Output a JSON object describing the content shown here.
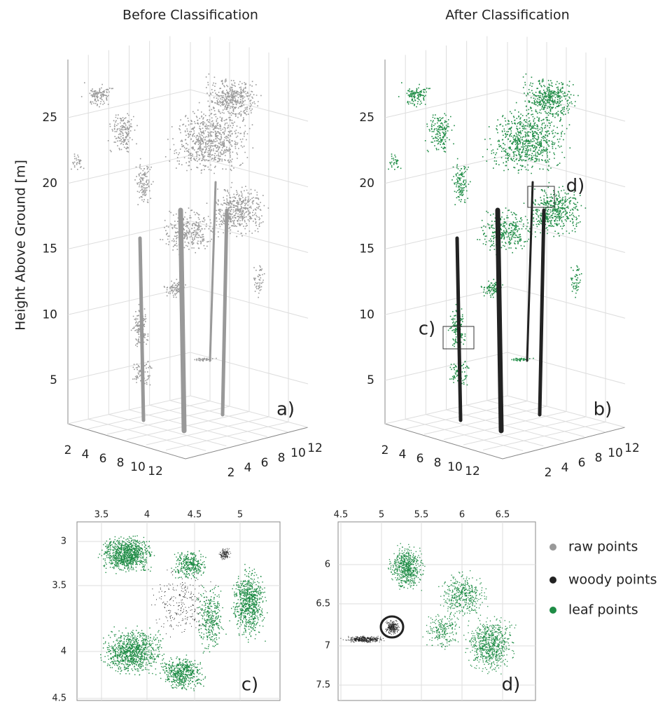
{
  "panels": [
    {
      "title": "Before Classification",
      "z_axis_label": "Height Above Ground [m]",
      "z_ticks": [
        5,
        10,
        15,
        20,
        25
      ],
      "x_ticks": [
        2,
        4,
        6,
        8,
        10,
        12
      ],
      "y_ticks": [
        2,
        4,
        6,
        8,
        10,
        12
      ],
      "label": "a)"
    },
    {
      "title": "After Classification",
      "z_ticks": [
        5,
        10,
        15,
        20,
        25
      ],
      "x_ticks": [
        2,
        4,
        6,
        8,
        10,
        12
      ],
      "y_ticks": [
        2,
        4,
        6,
        8,
        10,
        12
      ],
      "label": "b)",
      "box_labels": [
        "c)",
        "d)"
      ]
    }
  ],
  "insets": [
    {
      "x_ticks": [
        3.5,
        4,
        4.5,
        5
      ],
      "y_ticks": [
        3,
        3.5,
        4,
        4.5
      ],
      "label": "c)"
    },
    {
      "x_ticks": [
        4.5,
        5,
        5.5,
        6,
        6.5
      ],
      "y_ticks": [
        6,
        6.5,
        7,
        7.5
      ],
      "label": "d)"
    }
  ],
  "legend": [
    {
      "label": "raw points",
      "color": "#999999"
    },
    {
      "label": "woody points",
      "color": "#222222"
    },
    {
      "label": "leaf points",
      "color": "#1e8c45"
    }
  ]
}
